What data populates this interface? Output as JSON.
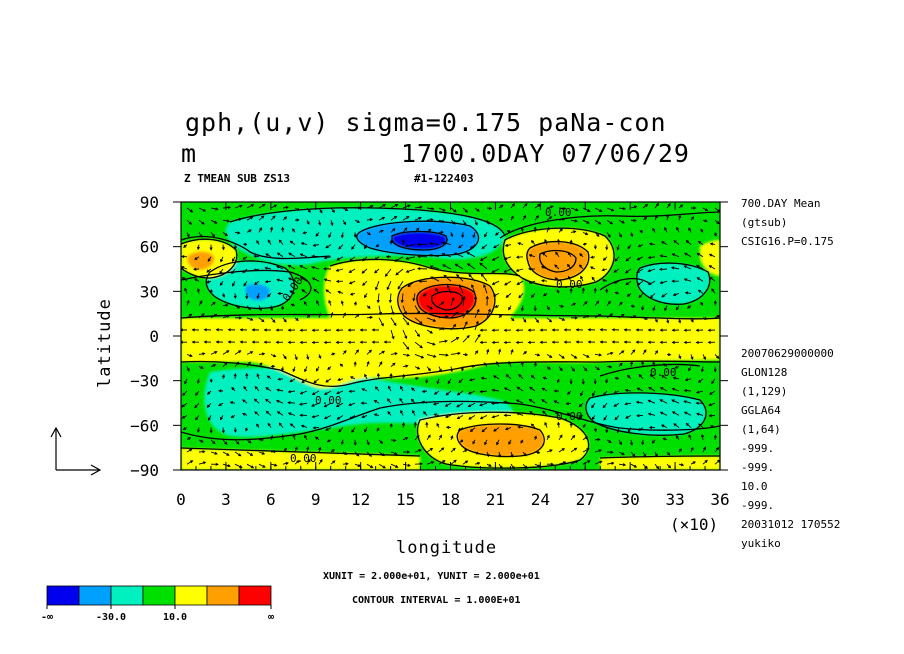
{
  "chart_data": {
    "type": "contour",
    "title_line1": "gph,(u,v) sigma=0.175 paNa-con",
    "title_line2_left": "m",
    "title_line2_right": "1700.0DAY 07/06/29",
    "subtitle_left": "Z TMEAN SUB ZS13",
    "subtitle_right": "#1-122403",
    "xlabel": "longitude",
    "ylabel": "latitude",
    "x_multiplier": "(×10)",
    "x_ticks": [
      "0",
      "3",
      "6",
      "9",
      "12",
      "15",
      "18",
      "21",
      "24",
      "27",
      "30",
      "33",
      "36"
    ],
    "y_ticks": [
      "90",
      "60",
      "30",
      "0",
      "−30",
      "−60",
      "−90"
    ],
    "xlim": [
      0,
      36
    ],
    "ylim": [
      -90,
      90
    ],
    "contour_label": "0.00",
    "right_info": [
      "700.DAY Mean",
      "(gtsub)",
      "CSIG16.P=0.175"
    ],
    "right_info2": [
      "20070629000000",
      "GLON128",
      "(1,129)",
      "GGLA64",
      "(1,64)",
      "-999.",
      "-999.",
      "10.0",
      "-999.",
      "20031012 170552",
      "yukiko"
    ],
    "unit_note": "XUNIT = 2.000e+01, YUNIT = 2.000e+01",
    "contour_interval": "CONTOUR INTERVAL = 1.000E+01",
    "colorbar": {
      "colors": [
        "#0000ee",
        "#00a0ff",
        "#00f0c0",
        "#00e000",
        "#ffff00",
        "#ffa000",
        "#ff0000"
      ],
      "labels": [
        "-∞",
        "-30.0",
        "10.0",
        "∞"
      ]
    }
  }
}
